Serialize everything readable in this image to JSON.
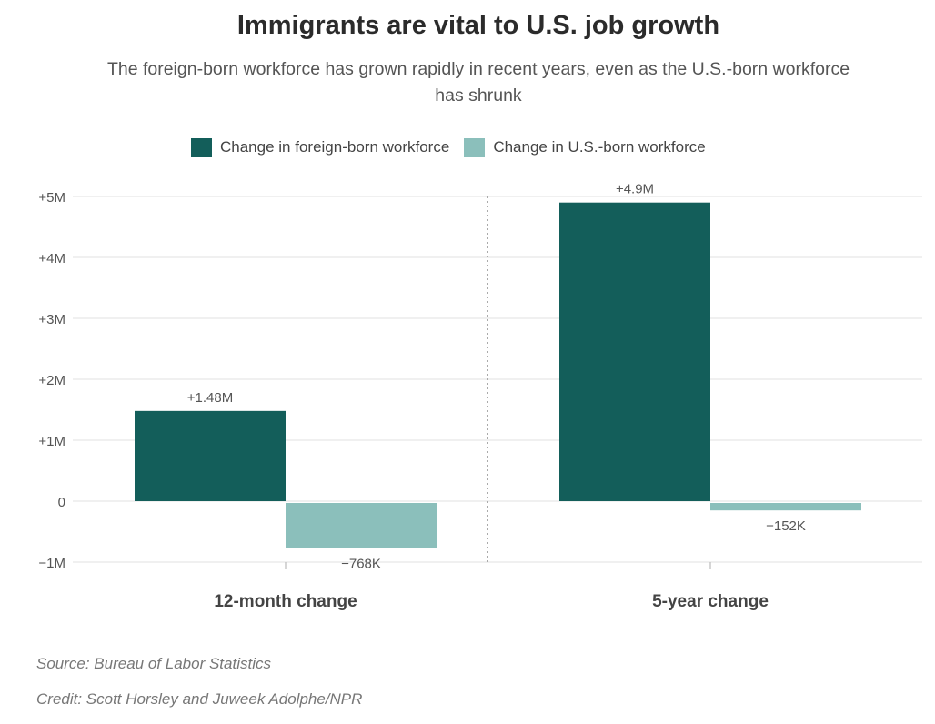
{
  "title": "Immigrants are vital to U.S. job growth",
  "subtitle": "The foreign-born workforce has grown rapidly in recent years, even as the U.S.-born workforce has shrunk",
  "legend": {
    "series_1": "Change in foreign-born workforce",
    "series_2": "Change in U.S.-born workforce"
  },
  "colors": {
    "foreign": "#135e5a",
    "us": "#8bbfbb",
    "grid": "#e6e6e6",
    "divider": "#aaaaaa"
  },
  "chart_data": {
    "type": "bar",
    "categories": [
      "12-month change",
      "5-year change"
    ],
    "series": [
      {
        "name": "Change in foreign-born workforce",
        "values": [
          1480000,
          4900000
        ],
        "labels": [
          "+1.48M",
          "+4.9M"
        ]
      },
      {
        "name": "Change in U.S.-born workforce",
        "values": [
          -768000,
          -152000
        ],
        "labels": [
          "−768K",
          "−152K"
        ]
      }
    ],
    "yticks": [
      -1000000,
      0,
      1000000,
      2000000,
      3000000,
      4000000,
      5000000
    ],
    "ytick_labels": [
      "−1M",
      "0",
      "+1M",
      "+2M",
      "+3M",
      "+4M",
      "+5M"
    ],
    "ylim": [
      -1000000,
      5000000
    ],
    "grid": true,
    "legend_position": "top"
  },
  "footer": {
    "source": "Source: Bureau of Labor Statistics",
    "credit": "Credit: Scott Horsley and Juweek Adolphe/NPR"
  }
}
